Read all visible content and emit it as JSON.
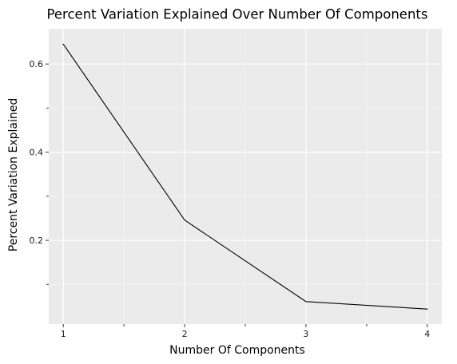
{
  "chart_data": {
    "type": "line",
    "title": "Percent Variation Explained Over Number Of Components",
    "xlabel": "Number Of Components",
    "ylabel": "Percent Variation Explained",
    "x": [
      1,
      2,
      3,
      4
    ],
    "series": [
      {
        "values": [
          0.645,
          0.246,
          0.061,
          0.044
        ]
      }
    ],
    "xlim": [
      0.88,
      4.12
    ],
    "ylim": [
      0.01,
      0.68
    ],
    "x_ticks": [
      1,
      2,
      3,
      4
    ],
    "x_tick_labels": [
      "1",
      "2",
      "3",
      "4"
    ],
    "y_ticks": [
      0.2,
      0.4,
      0.6
    ],
    "y_tick_labels": [
      "0.2",
      "0.4",
      "0.6"
    ],
    "grid": true,
    "legend": "none",
    "colors": {
      "panel_background": "#ebebeb",
      "grid_major": "#ffffff",
      "grid_minor": "#f5f5f5",
      "line": "#000000",
      "axis_tick": "#333333"
    }
  }
}
